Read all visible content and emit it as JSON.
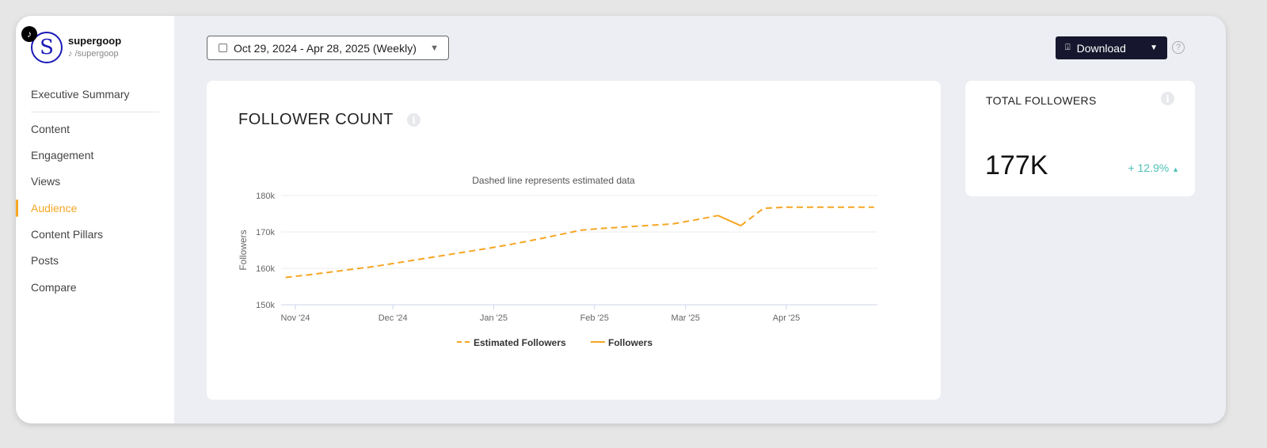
{
  "profile": {
    "name": "supergoop",
    "handle": "/supergoop",
    "avatar_letter": "S",
    "platform_icon": "tiktok-icon"
  },
  "sidebar": {
    "items": [
      {
        "label": "Executive Summary"
      },
      {
        "label": "Content"
      },
      {
        "label": "Engagement"
      },
      {
        "label": "Views"
      },
      {
        "label": "Audience",
        "active": true
      },
      {
        "label": "Content Pillars"
      },
      {
        "label": "Posts"
      },
      {
        "label": "Compare"
      }
    ]
  },
  "toolbar": {
    "date_range": "Oct 29, 2024 - Apr 28, 2025 (Weekly)",
    "download_label": "Download",
    "help": "?"
  },
  "follower_card": {
    "title": "FOLLOWER COUNT"
  },
  "total_card": {
    "title": "TOTAL FOLLOWERS",
    "value": "177K",
    "change": "+ 12.9%",
    "change_color": "#4fc1b8"
  },
  "colors": {
    "accent": "#f5a623",
    "download_bg": "#16172e"
  },
  "chart_data": {
    "type": "line",
    "subtitle": "Dashed line represents estimated data",
    "ylabel": "Followers",
    "ylim": [
      150000,
      180000
    ],
    "yticks": [
      {
        "v": 150000,
        "label": "150k"
      },
      {
        "v": 160000,
        "label": "160k"
      },
      {
        "v": 170000,
        "label": "170k"
      },
      {
        "v": 180000,
        "label": "180k"
      }
    ],
    "xticks": [
      {
        "d": "2024-11-01",
        "label": "Nov '24"
      },
      {
        "d": "2024-12-01",
        "label": "Dec '24"
      },
      {
        "d": "2025-01-01",
        "label": "Jan '25"
      },
      {
        "d": "2025-02-01",
        "label": "Feb '25"
      },
      {
        "d": "2025-03-01",
        "label": "Mar '25"
      },
      {
        "d": "2025-04-01",
        "label": "Apr '25"
      }
    ],
    "grid": true,
    "legend_position": "bottom",
    "series": [
      {
        "name": "Estimated Followers",
        "style": "dashed",
        "color": "#f5a623",
        "points": [
          [
            "2024-10-29",
            157500
          ],
          [
            "2024-11-05",
            158200
          ],
          [
            "2024-11-12",
            159000
          ],
          [
            "2024-11-19",
            159800
          ],
          [
            "2024-11-26",
            160600
          ],
          [
            "2024-12-03",
            161600
          ],
          [
            "2024-12-10",
            162600
          ],
          [
            "2024-12-17",
            163600
          ],
          [
            "2024-12-24",
            164600
          ],
          [
            "2024-12-31",
            165600
          ],
          [
            "2025-01-07",
            166700
          ],
          [
            "2025-01-14",
            167900
          ],
          [
            "2025-01-21",
            169200
          ],
          [
            "2025-01-28",
            170500
          ],
          [
            "2025-02-04",
            171000
          ],
          [
            "2025-02-11",
            171400
          ],
          [
            "2025-02-18",
            171800
          ],
          [
            "2025-02-25",
            172200
          ],
          [
            "2025-03-04",
            173300
          ],
          [
            "2025-03-11",
            174500
          ],
          null,
          [
            "2025-03-18",
            171700
          ],
          [
            "2025-03-25",
            176500
          ],
          [
            "2025-04-01",
            176800
          ],
          [
            "2025-04-08",
            176800
          ],
          [
            "2025-04-15",
            176800
          ],
          [
            "2025-04-22",
            176800
          ],
          [
            "2025-04-28",
            176800
          ]
        ]
      },
      {
        "name": "Followers",
        "style": "solid",
        "color": "#f5a623",
        "points": [
          [
            "2025-03-11",
            174500
          ],
          [
            "2025-03-18",
            171700
          ]
        ]
      }
    ]
  }
}
